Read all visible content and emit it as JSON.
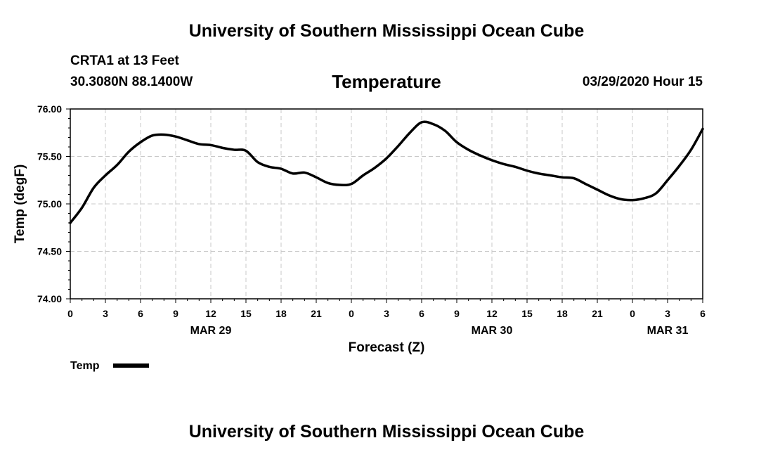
{
  "header": {
    "title": "University of Southern Mississippi Ocean Cube",
    "station": "CRTA1 at 13 Feet",
    "coordinates": "30.3080N 88.1400W",
    "variable": "Temperature",
    "datetime": "03/29/2020 Hour 15"
  },
  "footer": {
    "title": "University of Southern Mississippi Ocean Cube"
  },
  "colors": {
    "line": "#000000",
    "grid": "#c8c8c8",
    "background": "#ffffff"
  },
  "chart_data": {
    "type": "line",
    "title": "Temperature",
    "xlabel": "Forecast (Z)",
    "ylabel": "Temp (degF)",
    "ylim": [
      74.0,
      76.0
    ],
    "xlim": [
      0,
      54
    ],
    "grid": true,
    "legend_position": "bottom-left",
    "x_unit": "hours since 03/29/2020 00Z",
    "x_ticks": [
      0,
      3,
      6,
      9,
      12,
      15,
      18,
      21,
      24,
      27,
      30,
      33,
      36,
      39,
      42,
      45,
      48,
      51,
      54
    ],
    "x_tick_labels": [
      "0",
      "3",
      "6",
      "9",
      "12",
      "15",
      "18",
      "21",
      "0",
      "3",
      "6",
      "9",
      "12",
      "15",
      "18",
      "21",
      "0",
      "3",
      "6"
    ],
    "date_labels": [
      {
        "x": 12,
        "label": "MAR 29"
      },
      {
        "x": 36,
        "label": "MAR 30"
      },
      {
        "x": 51,
        "label": "MAR 31"
      }
    ],
    "y_ticks": [
      74.0,
      74.5,
      75.0,
      75.5,
      76.0
    ],
    "y_tick_labels": [
      "74.00",
      "74.50",
      "75.00",
      "75.50",
      "76.00"
    ],
    "series": [
      {
        "name": "Temp",
        "x": [
          0,
          1,
          2,
          3,
          4,
          5,
          6,
          7,
          8,
          9,
          10,
          11,
          12,
          13,
          14,
          15,
          16,
          17,
          18,
          19,
          20,
          21,
          22,
          23,
          24,
          25,
          26,
          27,
          28,
          29,
          30,
          31,
          32,
          33,
          34,
          35,
          36,
          37,
          38,
          39,
          40,
          41,
          42,
          43,
          44,
          45,
          46,
          47,
          48,
          49,
          50,
          51,
          52,
          53,
          54
        ],
        "values": [
          74.8,
          74.96,
          75.17,
          75.3,
          75.41,
          75.55,
          75.65,
          75.72,
          75.73,
          75.71,
          75.67,
          75.63,
          75.62,
          75.59,
          75.57,
          75.56,
          75.44,
          75.39,
          75.37,
          75.32,
          75.33,
          75.28,
          75.22,
          75.2,
          75.21,
          75.3,
          75.38,
          75.48,
          75.61,
          75.75,
          75.86,
          75.84,
          75.77,
          75.65,
          75.57,
          75.51,
          75.46,
          75.42,
          75.39,
          75.35,
          75.32,
          75.3,
          75.28,
          75.27,
          75.21,
          75.15,
          75.09,
          75.05,
          75.04,
          75.06,
          75.11,
          75.25,
          75.4,
          75.57,
          75.79
        ]
      }
    ]
  },
  "legend": {
    "label": "Temp"
  }
}
